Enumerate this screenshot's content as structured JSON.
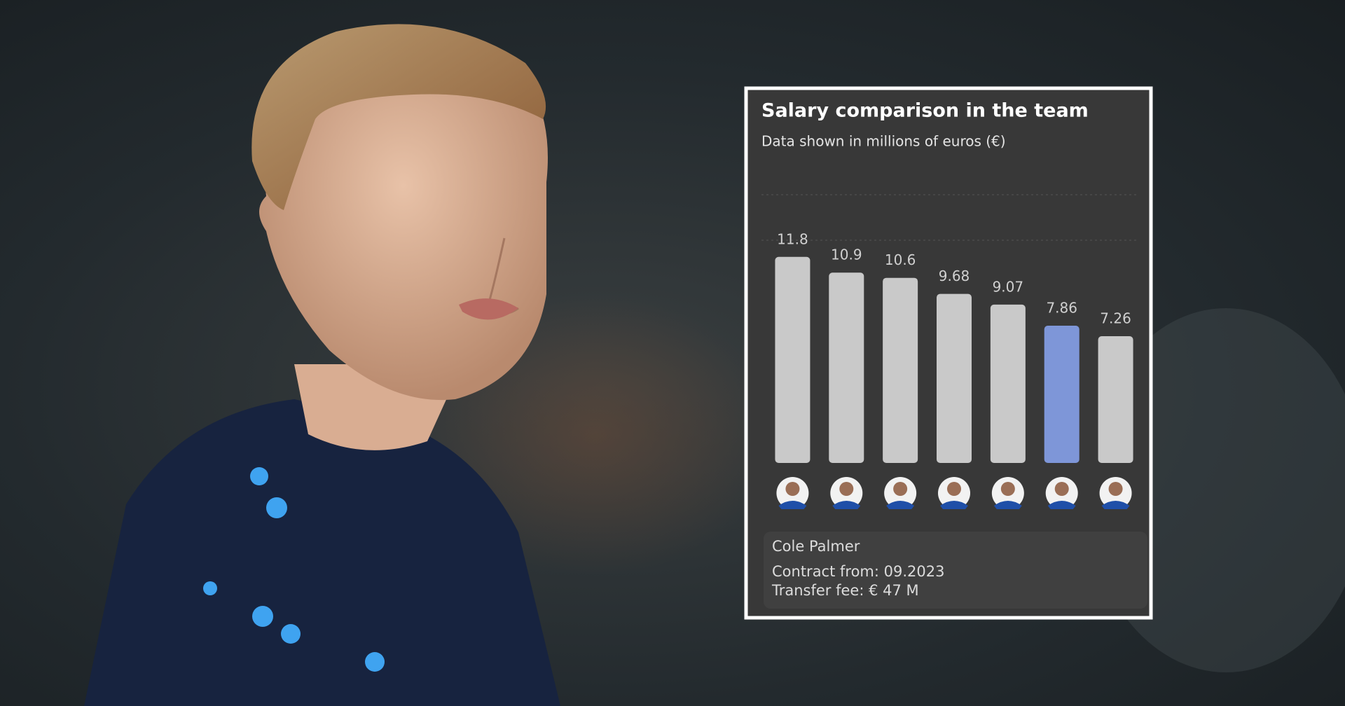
{
  "chart_data": {
    "type": "bar",
    "title": "Salary comparison in the team",
    "subtitle": "Data shown in millions of euros (€)",
    "categories": [
      null,
      null,
      null,
      null,
      null,
      null,
      null
    ],
    "values": [
      11.8,
      10.9,
      10.6,
      9.68,
      9.07,
      7.86,
      7.26
    ],
    "colors": [
      "#c9c9c9",
      "#c9c9c9",
      "#c9c9c9",
      "#c9c9c9",
      "#c9c9c9",
      "#7e96d8",
      "#c9c9c9"
    ],
    "ylim": [
      0,
      15
    ],
    "annotations": [
      "Cole Palmer",
      "Contract from: 09.2023",
      "Transfer fee: € 47 M"
    ]
  }
}
